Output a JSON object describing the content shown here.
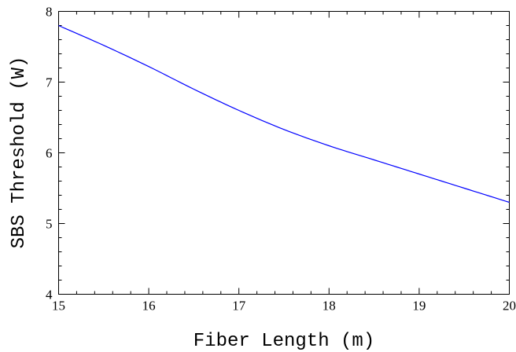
{
  "chart_data": {
    "type": "line",
    "title": "",
    "xlabel": "Fiber Length (m)",
    "ylabel": "SBS Threshold (W)",
    "xlim": [
      15,
      20
    ],
    "ylim": [
      4,
      8
    ],
    "x_ticks_major": [
      15,
      16,
      17,
      18,
      19,
      20
    ],
    "y_ticks_major": [
      4,
      5,
      6,
      7,
      8
    ],
    "x_ticks_minor_step": 0.2,
    "y_ticks_minor_step": 0.2,
    "grid": false,
    "legend": "none",
    "series": [
      {
        "color": "#0000ff",
        "x": [
          15,
          15.5,
          16,
          16.5,
          17,
          17.5,
          18,
          18.5,
          19,
          19.5,
          20
        ],
        "y": [
          7.8,
          7.52,
          7.22,
          6.9,
          6.6,
          6.33,
          6.1,
          5.9,
          5.7,
          5.5,
          5.3
        ]
      }
    ]
  }
}
